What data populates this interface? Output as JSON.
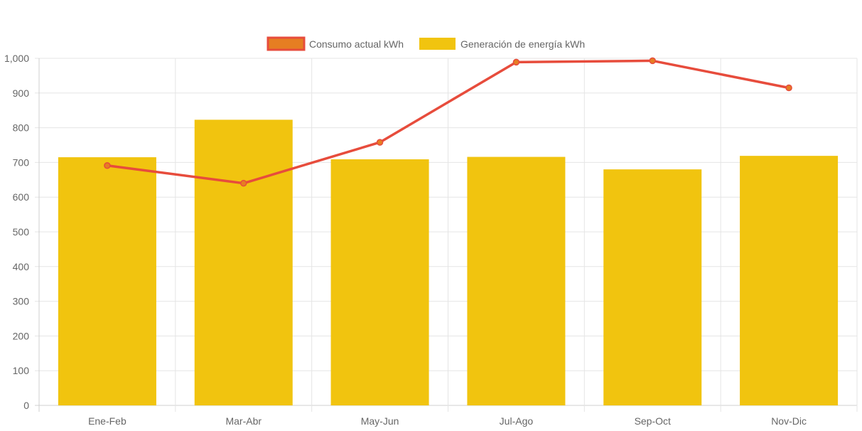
{
  "chart_data": {
    "type": "bar",
    "categories": [
      "Ene-Feb",
      "Mar-Abr",
      "May-Jun",
      "Jul-Ago",
      "Sep-Oct",
      "Nov-Dic"
    ],
    "series": [
      {
        "name": "Generación de energía kWh",
        "type": "bar",
        "values": [
          715,
          823,
          709,
          716,
          680,
          719
        ],
        "color": "#f1c40f"
      },
      {
        "name": "Consumo actual kWh",
        "type": "line",
        "values": [
          691,
          640,
          758,
          989,
          993,
          915
        ],
        "color": "#e74c3c",
        "point_color": "#e67e22"
      }
    ],
    "ylim": [
      0,
      1000
    ],
    "yticks": [
      "0",
      "100",
      "200",
      "300",
      "400",
      "500",
      "600",
      "700",
      "800",
      "900",
      "1,000"
    ],
    "grid": true,
    "legend_position": "top-center",
    "legend": [
      {
        "label": "Consumo actual kWh",
        "fill": "#e67e22",
        "border": "#e74c3c"
      },
      {
        "label": "Generación de energía kWh",
        "fill": "#f1c40f",
        "border": "#f1c40f"
      }
    ]
  }
}
